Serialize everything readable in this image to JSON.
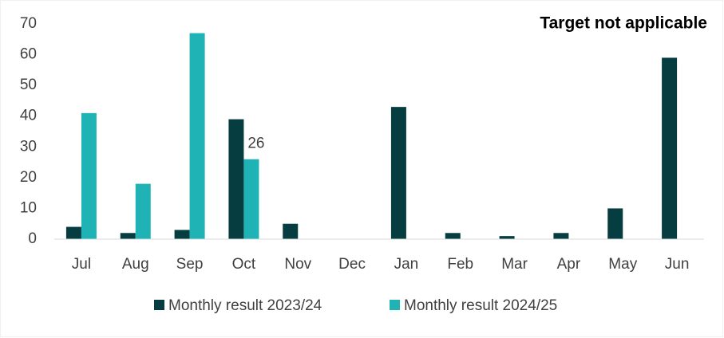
{
  "chart_data": {
    "type": "bar",
    "annotation": "Target not applicable",
    "categories": [
      "Jul",
      "Aug",
      "Sep",
      "Oct",
      "Nov",
      "Dec",
      "Jan",
      "Feb",
      "Mar",
      "Apr",
      "May",
      "Jun"
    ],
    "series": [
      {
        "name": "Monthly result 2023/24",
        "color": "#063d40",
        "values": [
          4,
          2,
          3,
          39,
          5,
          0,
          43,
          2,
          1,
          2,
          10,
          59
        ]
      },
      {
        "name": "Monthly result 2024/25",
        "color": "#1fb3b5",
        "values": [
          41,
          18,
          67,
          26,
          null,
          null,
          null,
          null,
          null,
          null,
          null,
          null
        ],
        "value_labels": [
          null,
          null,
          null,
          "26",
          null,
          null,
          null,
          null,
          null,
          null,
          null,
          null
        ]
      }
    ],
    "ylim": [
      0,
      70
    ],
    "yticks": [
      0,
      10,
      20,
      30,
      40,
      50,
      60,
      70
    ],
    "grid": false,
    "legend": "bottom"
  }
}
